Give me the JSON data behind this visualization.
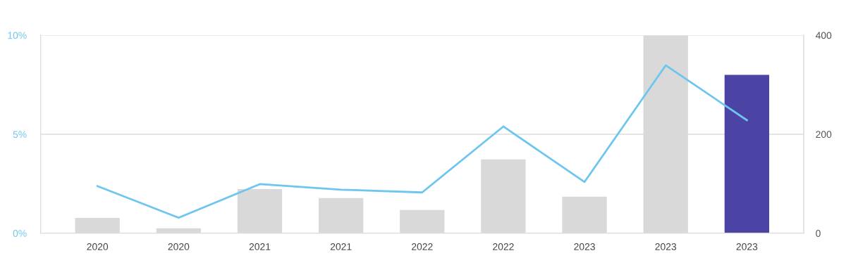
{
  "chart_data": {
    "type": "bar",
    "categories": [
      "2020",
      "2020",
      "2021",
      "2021",
      "2022",
      "2022",
      "2023",
      "2023",
      "2023"
    ],
    "series": [
      {
        "axis": "y2",
        "colors": [
          "#d9d9d9",
          "#d9d9d9",
          "#d9d9d9",
          "#d9d9d9",
          "#d9d9d9",
          "#d9d9d9",
          "#d9d9d9",
          "#d9d9d9",
          "#4b44a5"
        ],
        "values": [
          31,
          10,
          89,
          71,
          47,
          149,
          74,
          400,
          320
        ]
      },
      {
        "type": "line",
        "axis": "y",
        "color": "#6ec6ee",
        "values": [
          2.38,
          0.78,
          2.48,
          2.2,
          2.06,
          5.39,
          2.59,
          8.48,
          5.71
        ]
      }
    ],
    "ylim": [
      0,
      10
    ],
    "yticks": [
      {
        "value": 0,
        "label": "0%"
      },
      {
        "value": 5,
        "label": "5%"
      },
      {
        "value": 10,
        "label": "10%"
      }
    ],
    "y2lim": [
      0,
      400
    ],
    "y2ticks": [
      0,
      200,
      400
    ],
    "grid": "y",
    "marker": "none",
    "line_style": "solid"
  }
}
